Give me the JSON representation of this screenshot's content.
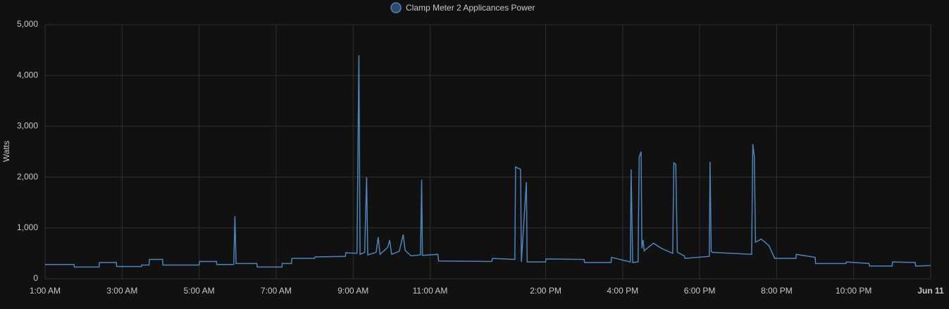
{
  "chart_data": {
    "type": "line",
    "y_label": "Watts",
    "x": [
      1,
      1.75,
      1.76,
      2.4,
      2.41,
      2.85,
      2.86,
      3.5,
      3.51,
      3.7,
      3.71,
      4.05,
      4.06,
      5,
      5.01,
      5.45,
      5.46,
      5.9,
      5.93,
      5.96,
      6.05,
      6.5,
      6.51,
      7.15,
      7.16,
      7.4,
      7.41,
      8,
      8.01,
      8.8,
      8.81,
      9.1,
      9.15,
      9.18,
      9.3,
      9.35,
      9.38,
      9.6,
      9.65,
      9.7,
      9.9,
      9.95,
      10,
      10.2,
      10.3,
      10.35,
      10.5,
      10.75,
      10.78,
      10.8,
      11.2,
      11.22,
      12.6,
      12.62,
      13.2,
      13.22,
      13.35,
      13.37,
      13.5,
      13.52,
      14,
      14.01,
      15,
      15.01,
      15.7,
      15.71,
      16.2,
      16.22,
      16.26,
      16.4,
      16.43,
      16.48,
      16.5,
      16.53,
      16.56,
      16.8,
      17,
      17.3,
      17.33,
      17.38,
      17.42,
      17.6,
      17.62,
      18.25,
      18.27,
      18.3,
      18.32,
      19.35,
      19.38,
      19.42,
      19.45,
      19.6,
      19.8,
      19.95,
      20.1,
      20.5,
      20.51,
      21,
      21.01,
      21.8,
      21.81,
      22.4,
      22.41,
      23,
      23.01,
      23.6,
      23.61,
      24
    ],
    "series": [
      {
        "name": "Clamp Meter 2 Applicances Power",
        "color": "#4f82b8",
        "values": [
          280,
          280,
          230,
          230,
          320,
          320,
          240,
          240,
          270,
          270,
          380,
          380,
          270,
          270,
          340,
          340,
          280,
          280,
          1230,
          300,
          300,
          300,
          230,
          230,
          300,
          300,
          400,
          400,
          430,
          440,
          510,
          500,
          4400,
          480,
          520,
          2000,
          470,
          520,
          820,
          480,
          620,
          760,
          480,
          540,
          870,
          560,
          450,
          470,
          1950,
          460,
          480,
          350,
          340,
          400,
          380,
          2200,
          2150,
          330,
          1900,
          330,
          330,
          390,
          380,
          320,
          320,
          420,
          330,
          2150,
          320,
          330,
          2400,
          2500,
          600,
          760,
          550,
          700,
          600,
          500,
          2280,
          2250,
          520,
          450,
          400,
          440,
          2300,
          540,
          520,
          480,
          2650,
          2400,
          720,
          780,
          650,
          400,
          400,
          400,
          480,
          420,
          300,
          300,
          330,
          300,
          250,
          250,
          330,
          320,
          250,
          260
        ]
      }
    ],
    "xlim": [
      1,
      24
    ],
    "xticks": [
      {
        "value": 1,
        "label": "1:00 AM"
      },
      {
        "value": 3,
        "label": "3:00 AM"
      },
      {
        "value": 5,
        "label": "5:00 AM"
      },
      {
        "value": 7,
        "label": "7:00 AM"
      },
      {
        "value": 9,
        "label": "9:00 AM"
      },
      {
        "value": 11,
        "label": "11:00 AM"
      },
      {
        "value": 14,
        "label": "2:00 PM"
      },
      {
        "value": 16,
        "label": "4:00 PM"
      },
      {
        "value": 18,
        "label": "6:00 PM"
      },
      {
        "value": 20,
        "label": "8:00 PM"
      },
      {
        "value": 22,
        "label": "10:00 PM"
      },
      {
        "value": 24,
        "label": "Jun 11"
      }
    ],
    "ylim": [
      0,
      5000
    ],
    "yticks": [
      0,
      {
        "value": 1000,
        "label": "1,000"
      },
      {
        "value": 2000,
        "label": "2,000"
      },
      {
        "value": 3000,
        "label": "3,000"
      },
      {
        "value": 4000,
        "label": "4,000"
      },
      {
        "value": 5000,
        "label": "5,000"
      }
    ],
    "grid": true
  }
}
